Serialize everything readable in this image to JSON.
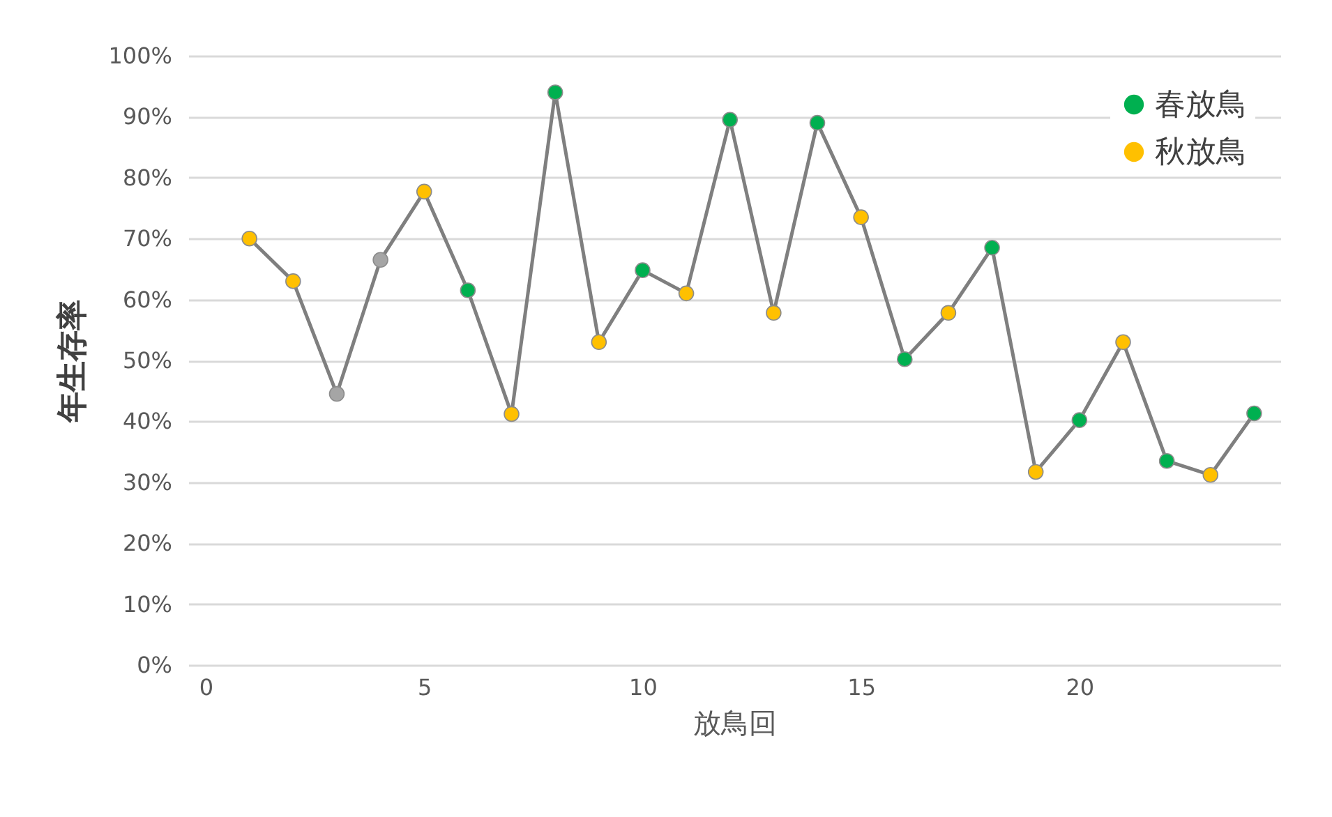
{
  "chart_data": {
    "type": "line",
    "xlabel": "放鳥回",
    "ylabel": "年生存率",
    "x": [
      1,
      2,
      3,
      4,
      5,
      6,
      7,
      8,
      9,
      10,
      11,
      12,
      13,
      14,
      15,
      16,
      17,
      18,
      19,
      20,
      21,
      22,
      23,
      24
    ],
    "series": [
      {
        "color": "#7f7f7f",
        "marker": "none",
        "values": [
          70,
          63,
          44.5,
          66.5,
          77.7,
          61.5,
          41.2,
          94,
          53,
          64.8,
          61,
          89.5,
          57.8,
          89,
          73.5,
          50.2,
          57.8,
          68.5,
          31.7,
          40.2,
          53,
          33.5,
          31.2,
          41.3
        ]
      },
      {
        "type": "scatter",
        "name": "春放鳥",
        "color": "#00b050",
        "marker": "circle",
        "values": [
          null,
          null,
          null,
          null,
          null,
          61.5,
          null,
          94,
          null,
          64.8,
          null,
          89.5,
          null,
          89,
          null,
          50.2,
          null,
          68.5,
          null,
          40.2,
          null,
          33.5,
          null,
          41.3
        ]
      },
      {
        "type": "scatter",
        "name": "秋放鳥",
        "color": "#ffc000",
        "marker": "circle",
        "values": [
          70,
          63,
          null,
          null,
          77.7,
          null,
          41.2,
          null,
          53,
          null,
          61,
          null,
          57.8,
          null,
          73.5,
          null,
          57.8,
          null,
          31.7,
          null,
          53,
          null,
          31.2,
          null
        ]
      },
      {
        "type": "scatter",
        "color": "#a5a5a5",
        "marker": "circle",
        "values": [
          null,
          null,
          44.5,
          66.5,
          null,
          null,
          null,
          null,
          null,
          null,
          null,
          null,
          null,
          null,
          null,
          null,
          null,
          null,
          null,
          null,
          null,
          null,
          null,
          null
        ]
      }
    ],
    "xlim": [
      -0.4,
      24.6
    ],
    "xticks": [
      0,
      5,
      10,
      15,
      20
    ],
    "ylim": [
      0,
      100
    ],
    "yticks": [
      {
        "value": 0,
        "label": "0%"
      },
      {
        "value": 10,
        "label": "10%"
      },
      {
        "value": 20,
        "label": "20%"
      },
      {
        "value": 30,
        "label": "30%"
      },
      {
        "value": 40,
        "label": "40%"
      },
      {
        "value": 50,
        "label": "50%"
      },
      {
        "value": 60,
        "label": "60%"
      },
      {
        "value": 70,
        "label": "70%"
      },
      {
        "value": 80,
        "label": "80%"
      },
      {
        "value": 90,
        "label": "90%"
      },
      {
        "value": 100,
        "label": "100%"
      }
    ],
    "grid": "y",
    "legend": "top right"
  }
}
